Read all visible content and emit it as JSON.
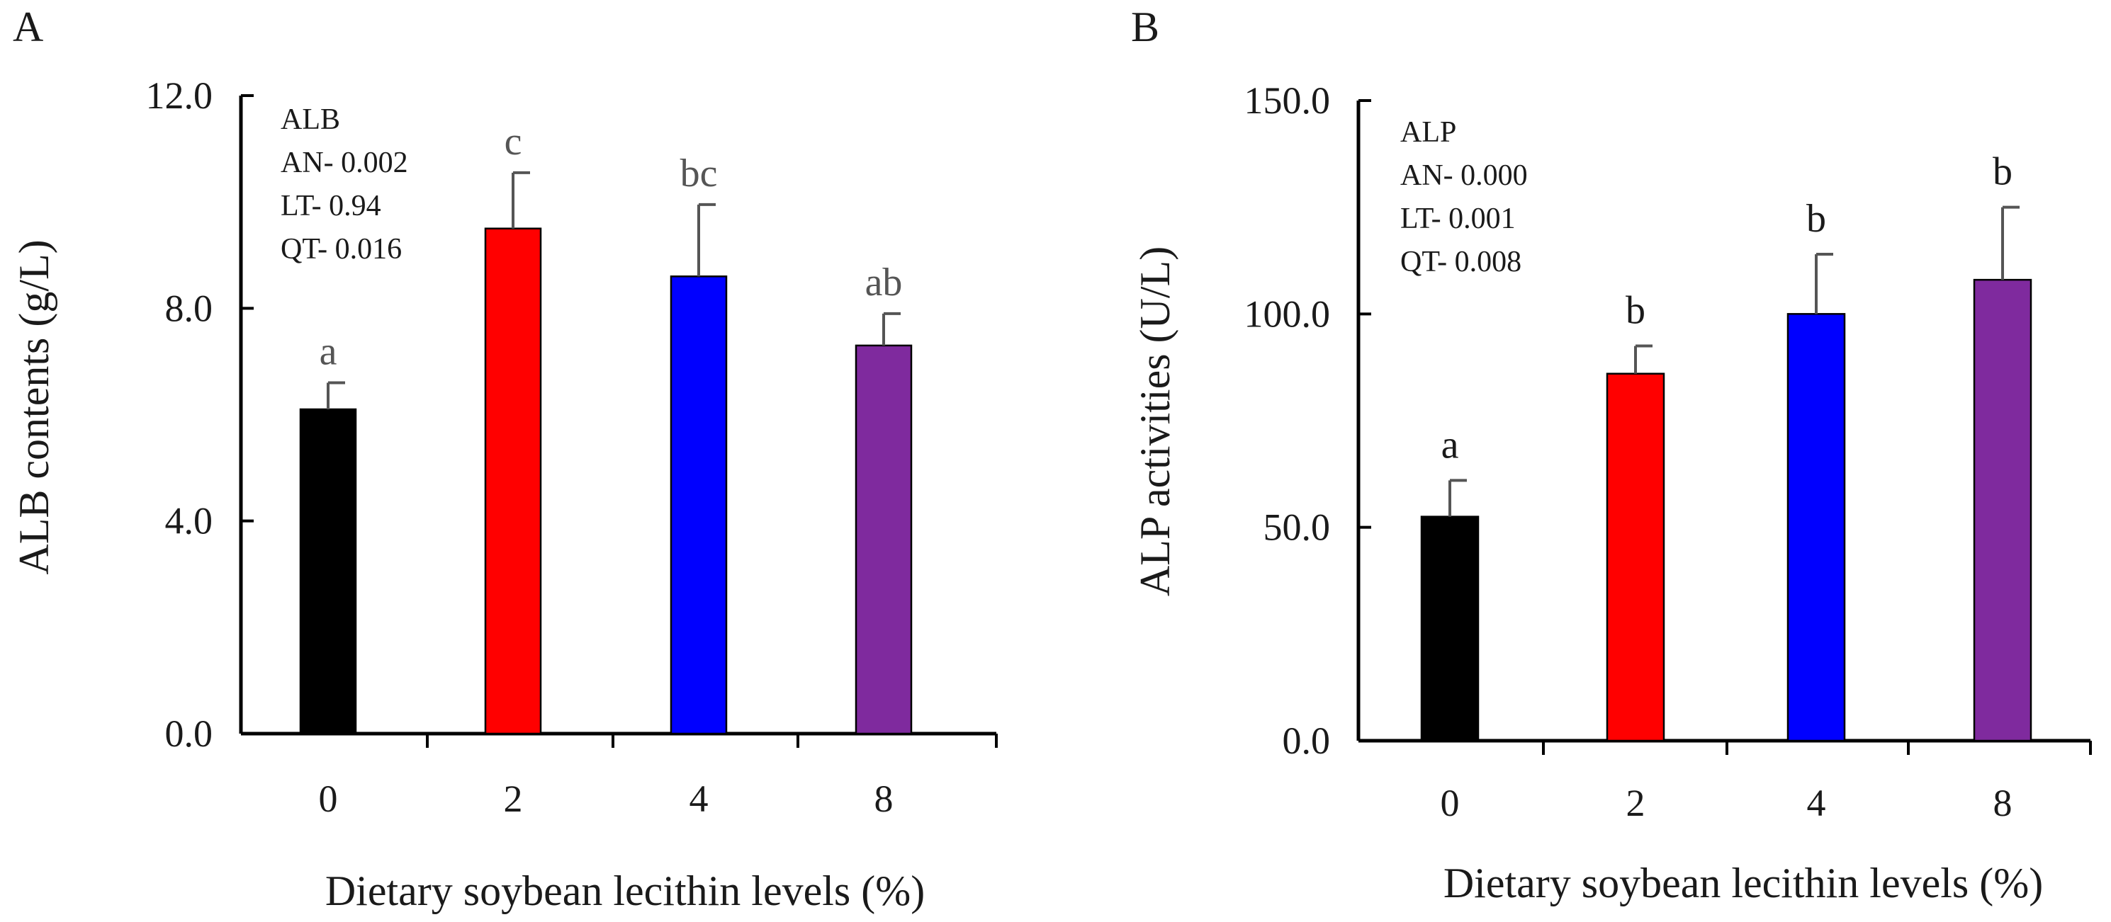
{
  "chart_data": [
    {
      "type": "bar",
      "panel_label": "A",
      "categories": [
        "0",
        "2",
        "4",
        "8"
      ],
      "values": [
        6.1,
        9.5,
        8.6,
        7.3
      ],
      "errors": [
        0.5,
        1.05,
        1.35,
        0.6
      ],
      "significance": [
        "a",
        "c",
        "bc",
        "ab"
      ],
      "colors": [
        "#000000",
        "#ff0000",
        "#0000ff",
        "#7f2a9e"
      ],
      "ylabel": "ALB contents  (g/L)",
      "xlabel": "Dietary soybean lecithin levels (%)",
      "ylim": [
        0,
        12
      ],
      "yticks": [
        0,
        4,
        8,
        12
      ],
      "ytick_labels": [
        "0.0",
        "4.0",
        "8.0",
        "12.0"
      ],
      "annotation": [
        "ALB",
        "AN- 0.002",
        "LT- 0.94",
        "QT- 0.016"
      ]
    },
    {
      "type": "bar",
      "panel_label": "B",
      "categories": [
        "0",
        "2",
        "4",
        "8"
      ],
      "values": [
        52.5,
        86,
        100,
        108
      ],
      "errors": [
        8.5,
        6.5,
        14,
        17
      ],
      "significance": [
        "a",
        "b",
        "b",
        "b"
      ],
      "colors": [
        "#000000",
        "#ff0000",
        "#0000ff",
        "#7f2a9e"
      ],
      "ylabel": "ALP activities (U/L)",
      "xlabel": "Dietary soybean lecithin levels (%)",
      "ylim": [
        0,
        150
      ],
      "yticks": [
        0,
        50,
        100,
        150
      ],
      "ytick_labels": [
        "0.0",
        "50.0",
        "100.0",
        "150.0"
      ],
      "annotation": [
        "ALP",
        "AN- 0.000",
        "LT- 0.001",
        "QT- 0.008"
      ]
    }
  ]
}
